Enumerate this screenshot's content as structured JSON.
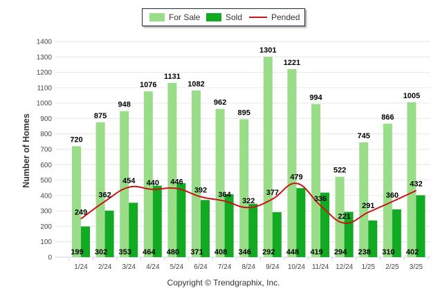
{
  "chart_data": {
    "type": "bar",
    "categories": [
      "1/24",
      "2/24",
      "3/24",
      "4/24",
      "5/24",
      "6/24",
      "7/24",
      "8/24",
      "9/24",
      "10/24",
      "11/24",
      "12/24",
      "1/25",
      "2/25",
      "3/25"
    ],
    "series": [
      {
        "name": "For Sale",
        "type": "bar",
        "color": "#99dd88",
        "values": [
          720,
          875,
          948,
          1076,
          1131,
          1082,
          962,
          895,
          1301,
          1221,
          994,
          522,
          745,
          866,
          1005
        ]
      },
      {
        "name": "Sold",
        "type": "bar",
        "color": "#11aa22",
        "values": [
          199,
          302,
          353,
          464,
          480,
          371,
          408,
          346,
          292,
          448,
          419,
          294,
          238,
          310,
          402
        ]
      },
      {
        "name": "Pended",
        "type": "line",
        "color": "#cc1111",
        "values": [
          249,
          362,
          454,
          440,
          446,
          392,
          364,
          322,
          377,
          479,
          336,
          221,
          291,
          360,
          432
        ]
      }
    ],
    "ylabel": "Number of Homes",
    "xlabel": "",
    "ylim": [
      0,
      1400
    ],
    "yticks": [
      0,
      100,
      200,
      300,
      400,
      500,
      600,
      700,
      800,
      900,
      1000,
      1100,
      1200,
      1300,
      1400
    ],
    "grid": true,
    "legend": "top-center",
    "credit": "Copyright © Trendgraphix, Inc."
  }
}
